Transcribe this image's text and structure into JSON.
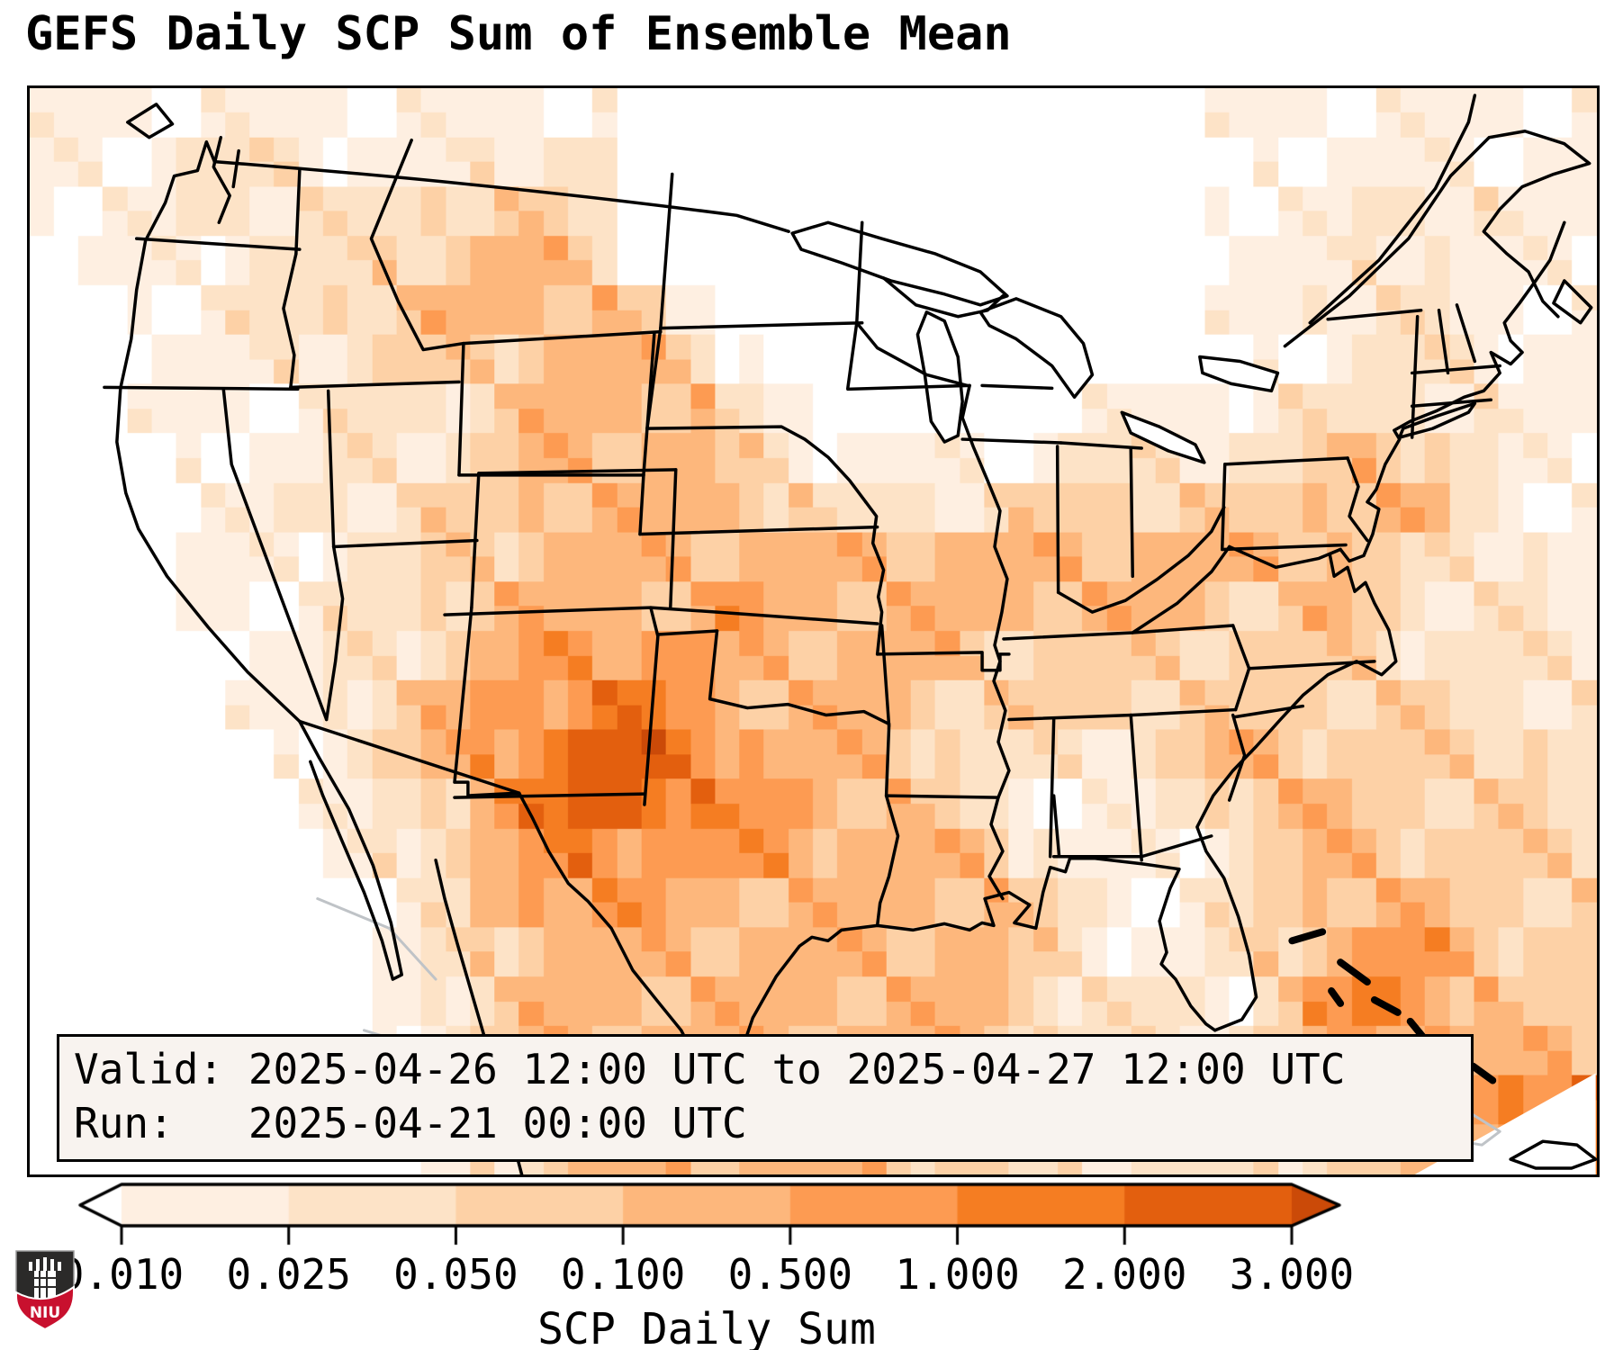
{
  "title": "GEFS Daily SCP Sum of Ensemble Mean",
  "info_box": {
    "valid_line": "Valid: 2025-04-26 12:00 UTC to 2025-04-27 12:00 UTC",
    "run_line": "Run:   2025-04-21 00:00 UTC"
  },
  "colorbar": {
    "label": "SCP Daily Sum",
    "tick_labels": [
      "0.010",
      "0.025",
      "0.050",
      "0.100",
      "0.500",
      "1.000",
      "2.000",
      "3.000"
    ],
    "outline_color": "#000000"
  },
  "branding": {
    "logo_text": "NIU",
    "shield_dark": "#2b2a29",
    "shield_red": "#c8102e"
  },
  "chart_data": {
    "type": "heatmap",
    "title": "GEFS Daily SCP Sum of Ensemble Mean",
    "legend_label": "SCP Daily Sum",
    "valid": "2025-04-26 12:00 UTC to 2025-04-27 12:00 UTC",
    "run": "2025-04-21 00:00 UTC",
    "level_boundaries": [
      0.01,
      0.025,
      0.05,
      0.1,
      0.5,
      1.0,
      2.0,
      3.0
    ],
    "level_colors": [
      "#ffffff",
      "#feefe1",
      "#fde3c7",
      "#fdd1a6",
      "#fdb77c",
      "#fd9b52",
      "#f57d22",
      "#e35f0e",
      "#cb4a08"
    ],
    "under_color": "#ffffff",
    "over_color": "#cb4a08",
    "grid_note": "digit = color level index per cell; 0 = below 0.010, 8 = above 3.000; 32 cols x 22 rows spanning map area west-to-east, north-to-south",
    "grid_cols": 32,
    "grid_rows": 22,
    "grid": [
      "11111111111100000000000011111111",
      "11122211122200000000000001111111",
      "11122222333200000000000011122211",
      "01112223344300000000000011122111",
      "00112233444431000000000011222111",
      "00111223334443100000000001122211",
      "00111122234444210000011112222211",
      "00011122234444321111122222343211",
      "00011222334444432222333333444211",
      "00011122334444444444444444432221",
      "00011122344444544444444433432221",
      "00001122345555444443333333332222",
      "00001123455665444433333333333222",
      "00000123456776544432222344333332",
      "00000112356776554432111234433332",
      "00000012345655554444211123443333",
      "00000001245554444444321123444333",
      "00000001234444444444321123455433",
      "00000001234444444444322213565433",
      "00000001234444444444322223455444",
      "00000000123444444443322223344566",
      "00000000123444444433222222334566"
    ]
  }
}
